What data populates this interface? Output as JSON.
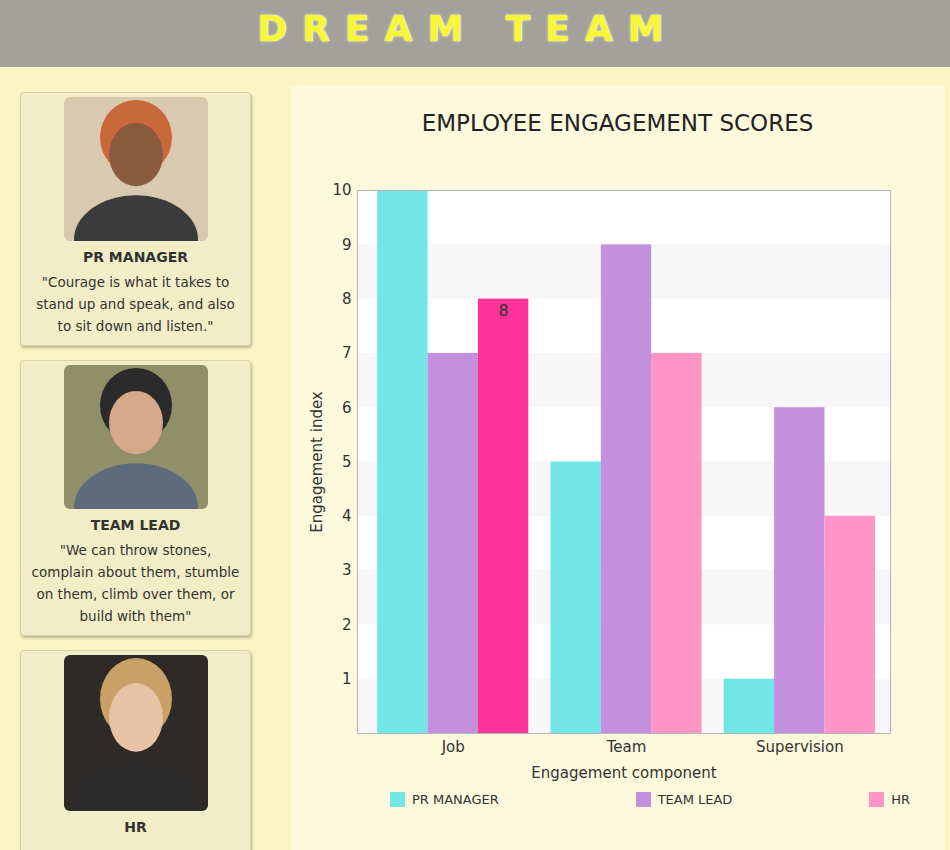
{
  "header": {
    "title": "DREAM TEAM"
  },
  "cards": [
    {
      "role": "PR MANAGER",
      "quote": "\"Courage is what it takes to stand up and speak, and also to sit down and listen.\""
    },
    {
      "role": "TEAM LEAD",
      "quote": "\"We can throw stones, complain about them, stumble on them, climb over them, or build with them\""
    },
    {
      "role": "HR"
    }
  ],
  "chart_data": {
    "type": "bar",
    "title": "EMPLOYEE ENGAGEMENT SCORES",
    "x_label": "Engagement component",
    "y_label": "Engagement index",
    "categories": [
      "Job",
      "Team",
      "Supervision"
    ],
    "series": [
      {
        "name": "PR MANAGER",
        "color": "#72e6e6",
        "values": [
          10,
          5,
          1
        ]
      },
      {
        "name": "TEAM LEAD",
        "color": "#c490de",
        "values": [
          7,
          9,
          6
        ]
      },
      {
        "name": "HR",
        "color": "#ff94c6",
        "colors": [
          "#ff3399",
          "#ff94c6",
          "#ff94c6"
        ],
        "values": [
          8,
          7,
          4
        ]
      }
    ],
    "annotations": [
      {
        "category": "Job",
        "series": "HR",
        "text": "8"
      }
    ],
    "ylim": [
      0,
      10
    ],
    "yticks": [
      1,
      2,
      3,
      4,
      5,
      6,
      7,
      8,
      9,
      10
    ],
    "grid": true,
    "legend": "bottom"
  }
}
